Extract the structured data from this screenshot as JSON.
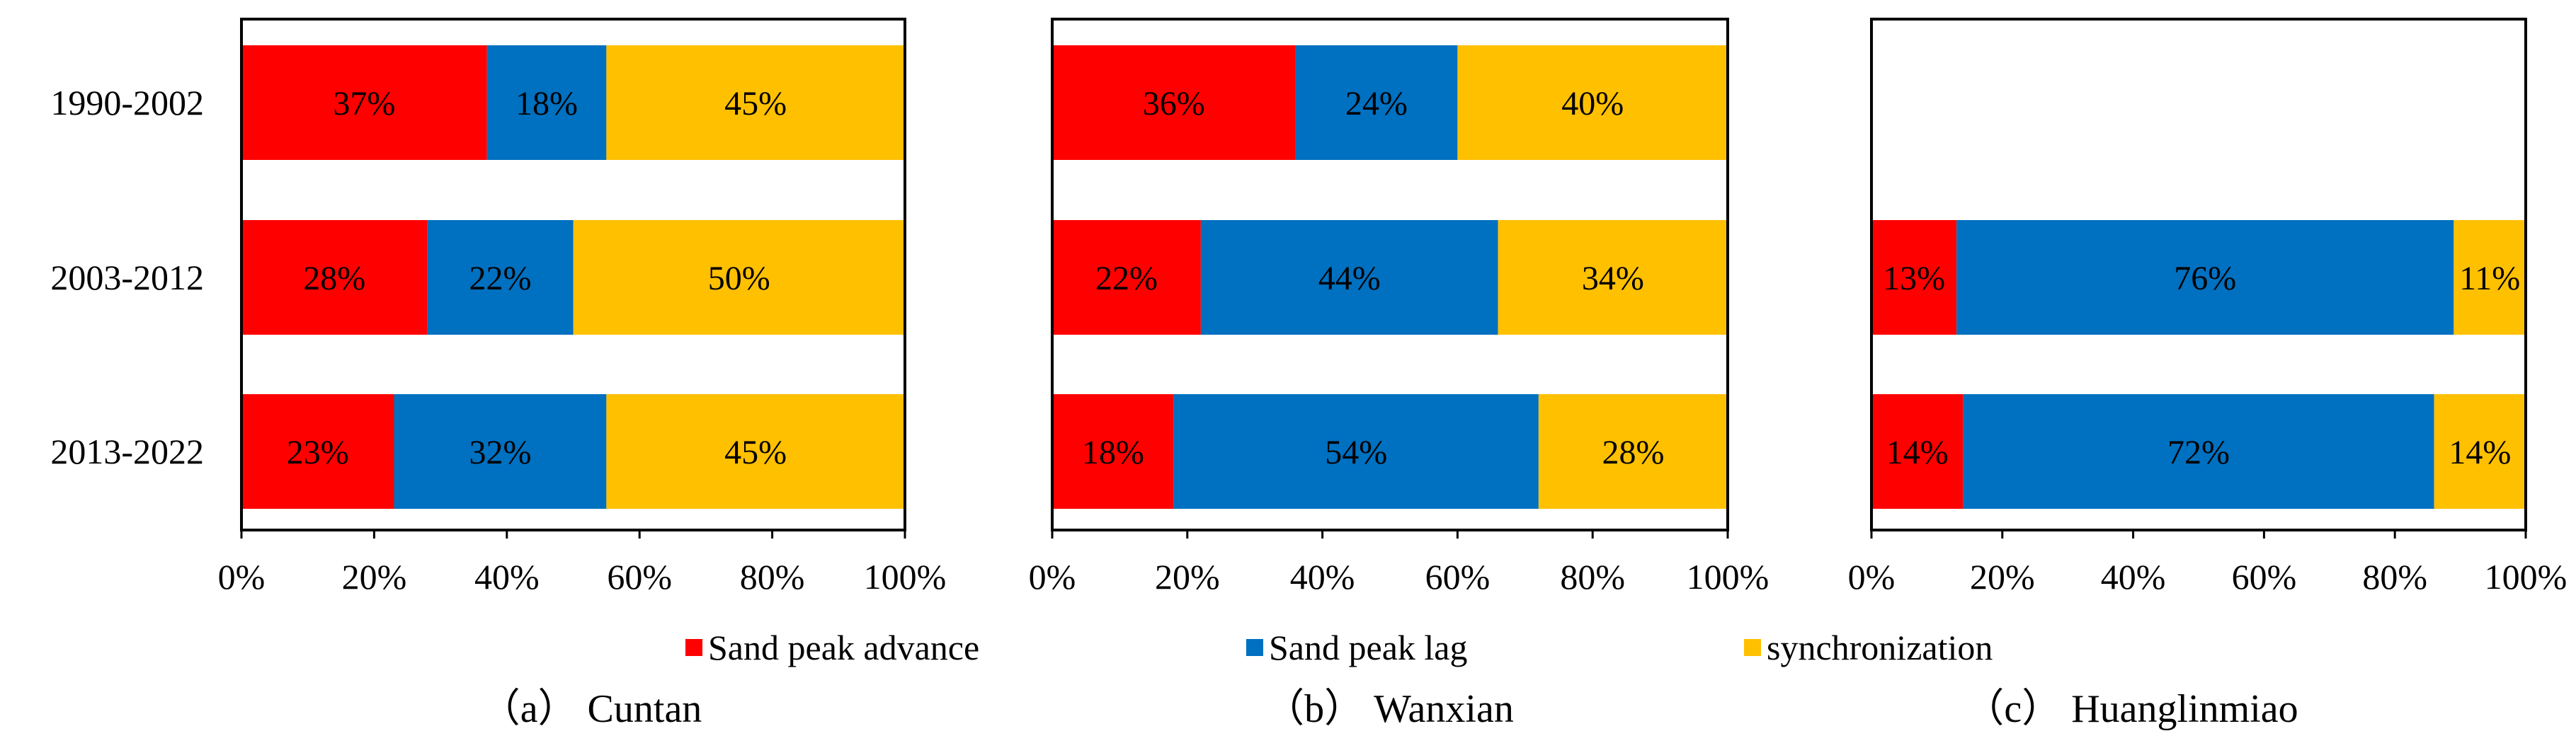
{
  "legend": [
    {
      "label": "Sand peak advance",
      "color": "#FF0000"
    },
    {
      "label": "Sand peak lag",
      "color": "#0070C0"
    },
    {
      "label": "synchronization",
      "color": "#FFC000"
    }
  ],
  "chart_data": [
    {
      "type": "bar",
      "orientation": "horizontal",
      "stacked": "percent",
      "caption": "（a） Cuntan",
      "categories": [
        "1990-2002",
        "2003-2012",
        "2013-2022"
      ],
      "series": [
        {
          "name": "Sand peak advance",
          "values": [
            37,
            28,
            23
          ],
          "labels": [
            "37%",
            "28%",
            "23%"
          ]
        },
        {
          "name": "Sand peak lag",
          "values": [
            18,
            22,
            32
          ],
          "labels": [
            "18%",
            "22%",
            "32%"
          ]
        },
        {
          "name": "synchronization",
          "values": [
            45,
            50,
            45
          ],
          "labels": [
            "45%",
            "50%",
            "45%"
          ]
        }
      ],
      "xlim": [
        0,
        100
      ],
      "x_ticks": [
        "0%",
        "20%",
        "40%",
        "60%",
        "80%",
        "100%"
      ],
      "grid": false,
      "legend_position": "bottom"
    },
    {
      "type": "bar",
      "orientation": "horizontal",
      "stacked": "percent",
      "caption": "（b） Wanxian",
      "categories": [
        "1990-2002",
        "2003-2012",
        "2013-2022"
      ],
      "series": [
        {
          "name": "Sand peak advance",
          "values": [
            36,
            22,
            18
          ],
          "labels": [
            "36%",
            "22%",
            "18%"
          ]
        },
        {
          "name": "Sand peak lag",
          "values": [
            24,
            44,
            54
          ],
          "labels": [
            "24%",
            "44%",
            "54%"
          ]
        },
        {
          "name": "synchronization",
          "values": [
            40,
            34,
            28
          ],
          "labels": [
            "40%",
            "34%",
            "28%"
          ]
        }
      ],
      "xlim": [
        0,
        100
      ],
      "x_ticks": [
        "0%",
        "20%",
        "40%",
        "60%",
        "80%",
        "100%"
      ],
      "grid": false,
      "legend_position": "bottom"
    },
    {
      "type": "bar",
      "orientation": "horizontal",
      "stacked": "percent",
      "caption": "（c） Huanglinmiao",
      "categories": [
        "1990-2002",
        "2003-2012",
        "2013-2022"
      ],
      "series": [
        {
          "name": "Sand peak advance",
          "values": [
            null,
            13,
            14
          ],
          "labels": [
            "",
            "13%",
            "14%"
          ]
        },
        {
          "name": "Sand peak lag",
          "values": [
            null,
            76,
            72
          ],
          "labels": [
            "",
            "76%",
            "72%"
          ]
        },
        {
          "name": "synchronization",
          "values": [
            null,
            11,
            14
          ],
          "labels": [
            "",
            "11%",
            "14%"
          ]
        }
      ],
      "xlim": [
        0,
        100
      ],
      "x_ticks": [
        "0%",
        "20%",
        "40%",
        "60%",
        "80%",
        "100%"
      ],
      "grid": false,
      "legend_position": "bottom"
    }
  ]
}
